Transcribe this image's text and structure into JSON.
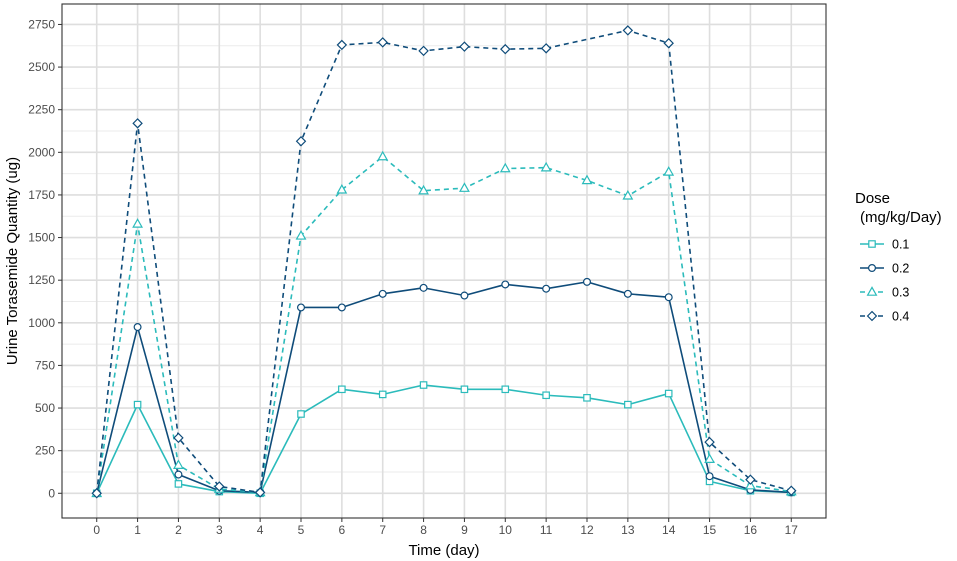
{
  "chart_data": {
    "type": "line",
    "xlabel": "Time (day)",
    "ylabel": "Urine Torasemide Quantity (ug)",
    "xlim": [
      -0.85,
      17.85
    ],
    "ylim": [
      -145,
      2870
    ],
    "x_ticks": [
      0,
      1,
      2,
      3,
      4,
      5,
      6,
      7,
      8,
      9,
      10,
      11,
      12,
      13,
      14,
      15,
      16,
      17
    ],
    "y_ticks": [
      0,
      250,
      500,
      750,
      1000,
      1250,
      1500,
      1750,
      2000,
      2250,
      2500,
      2750
    ],
    "grid": true,
    "legend_position": "right",
    "legend_title_line1": "Dose",
    "legend_title_line2": "(mg/kg/Day)",
    "x": [
      0,
      1,
      2,
      3,
      4,
      5,
      6,
      7,
      8,
      9,
      10,
      11,
      12,
      13,
      14,
      15,
      16,
      17
    ],
    "series": [
      {
        "name": "0.1",
        "color": "#2bbbbb",
        "line": "solid",
        "marker": "square",
        "values": [
          0,
          520,
          55,
          10,
          0,
          465,
          610,
          580,
          635,
          610,
          610,
          575,
          560,
          520,
          585,
          70,
          15,
          5
        ]
      },
      {
        "name": "0.2",
        "color": "#0f4c7a",
        "line": "solid",
        "marker": "circle",
        "values": [
          0,
          975,
          110,
          15,
          5,
          1090,
          1090,
          1170,
          1205,
          1160,
          1225,
          1200,
          1240,
          1170,
          1150,
          100,
          20,
          5
        ]
      },
      {
        "name": "0.3",
        "color": "#2bbbbb",
        "line": "dashed",
        "marker": "triangle",
        "values": [
          0,
          1580,
          165,
          25,
          5,
          1510,
          1780,
          1975,
          1775,
          1790,
          1905,
          1910,
          1835,
          1745,
          1885,
          200,
          45,
          10
        ]
      },
      {
        "name": "0.4",
        "color": "#0f4c7a",
        "line": "dashed",
        "marker": "diamond",
        "values": [
          0,
          2170,
          325,
          40,
          5,
          2065,
          2630,
          2645,
          2595,
          2620,
          2605,
          2610,
          null,
          2715,
          2640,
          300,
          80,
          15
        ]
      }
    ]
  }
}
